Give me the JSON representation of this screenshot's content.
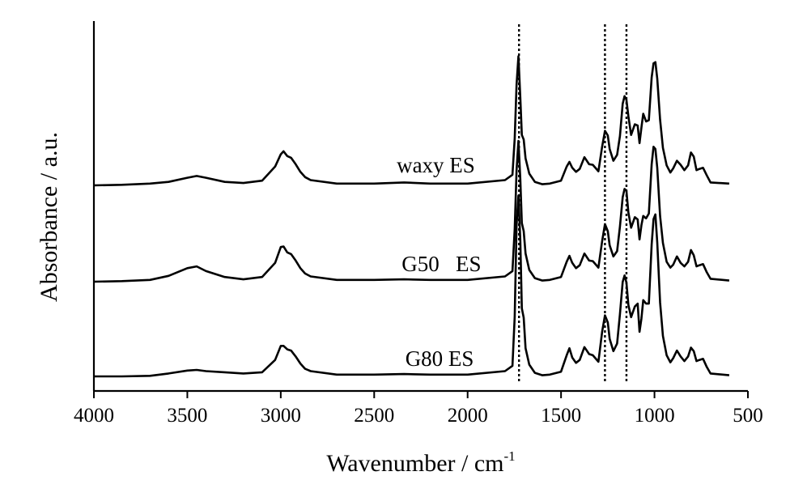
{
  "chart_data": {
    "type": "line",
    "title": "",
    "xlabel": "Wavenumber / cm",
    "xlabel_superscript": "-1",
    "ylabel": "Absorbance / a.u.",
    "xlim": [
      4000,
      500
    ],
    "x_reversed": true,
    "x_ticks": [
      4000,
      3500,
      3000,
      2500,
      2000,
      1500,
      1000,
      500
    ],
    "y_ticks_visible": false,
    "grid": false,
    "legend": "none",
    "marker_lines": [
      1725,
      1265,
      1150
    ],
    "series": [
      {
        "name": "waxy ES",
        "label_x": 2170,
        "x": [
          4000,
          3850,
          3700,
          3600,
          3500,
          3450,
          3400,
          3300,
          3200,
          3100,
          3030,
          3000,
          2985,
          2965,
          2945,
          2920,
          2895,
          2870,
          2840,
          2700,
          2500,
          2340,
          2200,
          2000,
          1800,
          1760,
          1748,
          1738,
          1728,
          1718,
          1710,
          1700,
          1690,
          1670,
          1640,
          1600,
          1560,
          1500,
          1470,
          1455,
          1440,
          1420,
          1400,
          1375,
          1350,
          1330,
          1300,
          1280,
          1265,
          1250,
          1240,
          1220,
          1200,
          1185,
          1170,
          1160,
          1150,
          1140,
          1125,
          1105,
          1090,
          1080,
          1070,
          1060,
          1045,
          1030,
          1015,
          1005,
          995,
          985,
          970,
          955,
          935,
          915,
          900,
          880,
          860,
          840,
          820,
          805,
          790,
          775,
          760,
          740,
          720,
          700,
          600
        ],
        "y": [
          0.0,
          0.1,
          0.3,
          0.6,
          1.3,
          1.6,
          1.3,
          0.6,
          0.4,
          0.8,
          3.2,
          5.3,
          5.8,
          5.0,
          4.7,
          3.6,
          2.3,
          1.4,
          0.9,
          0.3,
          0.3,
          0.5,
          0.3,
          0.3,
          0.9,
          1.8,
          8.0,
          17.2,
          22.0,
          15.0,
          8.6,
          7.8,
          4.6,
          2.0,
          0.6,
          0.2,
          0.3,
          0.8,
          3.2,
          4.0,
          3.0,
          2.3,
          2.8,
          4.8,
          3.6,
          3.5,
          2.4,
          6.6,
          9.3,
          8.5,
          6.2,
          4.2,
          5.2,
          8.4,
          13.9,
          15.2,
          14.6,
          11.8,
          8.6,
          10.4,
          10.2,
          7.2,
          9.8,
          12.2,
          10.9,
          11.1,
          18.4,
          20.8,
          21.0,
          18.2,
          11.2,
          6.4,
          3.4,
          2.2,
          2.9,
          4.2,
          3.5,
          2.6,
          3.4,
          5.6,
          4.9,
          2.6,
          2.8,
          3.0,
          1.7,
          0.5,
          0.3
        ]
      },
      {
        "name": "G50   ES",
        "label_x": 2140,
        "x": [
          4000,
          3850,
          3700,
          3600,
          3500,
          3450,
          3400,
          3300,
          3200,
          3100,
          3030,
          3000,
          2985,
          2965,
          2945,
          2920,
          2895,
          2870,
          2840,
          2700,
          2500,
          2340,
          2200,
          2000,
          1800,
          1760,
          1748,
          1738,
          1728,
          1718,
          1710,
          1700,
          1690,
          1670,
          1640,
          1600,
          1560,
          1500,
          1470,
          1455,
          1440,
          1420,
          1400,
          1375,
          1350,
          1330,
          1300,
          1280,
          1265,
          1250,
          1240,
          1220,
          1200,
          1185,
          1170,
          1160,
          1150,
          1140,
          1125,
          1105,
          1090,
          1080,
          1070,
          1060,
          1045,
          1030,
          1015,
          1005,
          995,
          985,
          970,
          955,
          935,
          915,
          900,
          880,
          860,
          840,
          820,
          805,
          790,
          775,
          760,
          740,
          720,
          700,
          600
        ],
        "y": [
          0.0,
          0.1,
          0.3,
          1.0,
          2.3,
          2.6,
          1.8,
          0.8,
          0.4,
          0.8,
          3.2,
          5.9,
          6.0,
          5.0,
          4.7,
          3.6,
          2.3,
          1.4,
          0.9,
          0.3,
          0.3,
          0.4,
          0.3,
          0.3,
          0.9,
          1.8,
          9.0,
          19.0,
          24.0,
          17.5,
          10.0,
          8.6,
          4.8,
          2.0,
          0.6,
          0.2,
          0.3,
          0.8,
          3.4,
          4.4,
          3.2,
          2.3,
          2.8,
          4.8,
          3.6,
          3.5,
          2.4,
          6.9,
          9.8,
          8.6,
          6.2,
          4.3,
          5.2,
          9.4,
          14.4,
          15.8,
          15.5,
          11.8,
          9.2,
          11.0,
          10.6,
          7.2,
          9.6,
          11.2,
          10.8,
          11.6,
          20.0,
          23.0,
          22.6,
          19.4,
          11.2,
          6.6,
          3.4,
          2.4,
          2.9,
          4.3,
          3.2,
          2.6,
          3.4,
          5.4,
          4.5,
          2.6,
          2.8,
          3.0,
          1.6,
          0.5,
          0.2
        ]
      },
      {
        "name": "G80 ES",
        "label_x": 2150,
        "x": [
          4000,
          3850,
          3700,
          3600,
          3500,
          3450,
          3400,
          3300,
          3200,
          3100,
          3030,
          3000,
          2985,
          2965,
          2945,
          2920,
          2895,
          2870,
          2840,
          2700,
          2500,
          2340,
          2200,
          2000,
          1800,
          1760,
          1748,
          1738,
          1728,
          1718,
          1710,
          1700,
          1690,
          1670,
          1640,
          1600,
          1560,
          1500,
          1470,
          1455,
          1440,
          1420,
          1400,
          1375,
          1350,
          1330,
          1300,
          1280,
          1265,
          1250,
          1240,
          1220,
          1200,
          1185,
          1170,
          1160,
          1150,
          1140,
          1125,
          1105,
          1090,
          1080,
          1070,
          1060,
          1045,
          1030,
          1015,
          1005,
          995,
          985,
          970,
          955,
          935,
          915,
          900,
          880,
          860,
          840,
          820,
          805,
          790,
          775,
          760,
          740,
          720,
          700,
          600
        ],
        "y": [
          0.0,
          0.0,
          0.1,
          0.5,
          1.0,
          1.1,
          0.9,
          0.7,
          0.5,
          0.7,
          2.8,
          5.2,
          5.2,
          4.6,
          4.4,
          3.4,
          2.2,
          1.3,
          0.9,
          0.3,
          0.3,
          0.4,
          0.3,
          0.3,
          0.9,
          1.8,
          10.2,
          25.8,
          30.8,
          23.2,
          11.6,
          10.0,
          4.8,
          2.0,
          0.6,
          0.2,
          0.3,
          0.8,
          3.6,
          4.8,
          3.2,
          2.3,
          2.8,
          5.0,
          3.8,
          3.6,
          2.5,
          7.6,
          10.4,
          9.2,
          6.4,
          4.3,
          5.6,
          10.6,
          16.1,
          17.2,
          16.0,
          12.2,
          10.1,
          11.9,
          12.4,
          7.6,
          9.8,
          13.0,
          12.4,
          12.4,
          22.5,
          26.8,
          27.6,
          22.8,
          12.6,
          6.9,
          3.6,
          2.4,
          3.1,
          4.4,
          3.4,
          2.6,
          3.4,
          4.9,
          4.3,
          2.6,
          2.8,
          3.0,
          1.6,
          0.5,
          0.2
        ]
      }
    ]
  }
}
